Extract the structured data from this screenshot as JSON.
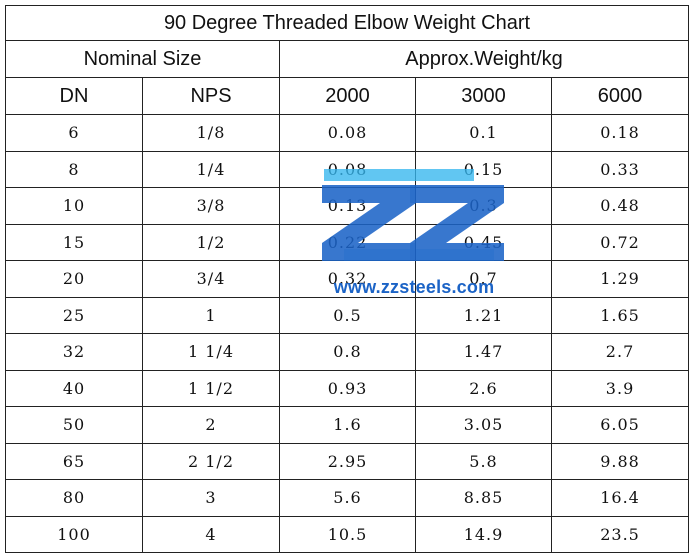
{
  "title": "90 Degree Threaded Elbow Weight Chart",
  "header": {
    "nominal_size": "Nominal Size",
    "approx_weight": "Approx.Weight/kg",
    "dn": "DN",
    "nps": "NPS",
    "c2000": "2000",
    "c3000": "3000",
    "c6000": "6000"
  },
  "rows": [
    {
      "dn": "6",
      "nps": "1/8",
      "w2000": "0.08",
      "w3000": "0.1",
      "w6000": "0.18"
    },
    {
      "dn": "8",
      "nps": "1/4",
      "w2000": "0.08",
      "w3000": "0.15",
      "w6000": "0.33"
    },
    {
      "dn": "10",
      "nps": "3/8",
      "w2000": "0.13",
      "w3000": "0.3",
      "w6000": "0.48"
    },
    {
      "dn": "15",
      "nps": "1/2",
      "w2000": "0.22",
      "w3000": "0.45",
      "w6000": "0.72"
    },
    {
      "dn": "20",
      "nps": "3/4",
      "w2000": "0.32",
      "w3000": "0.7",
      "w6000": "1.29"
    },
    {
      "dn": "25",
      "nps": "1",
      "w2000": "0.5",
      "w3000": "1.21",
      "w6000": "1.65"
    },
    {
      "dn": "32",
      "nps": "1 1/4",
      "w2000": "0.8",
      "w3000": "1.47",
      "w6000": "2.7"
    },
    {
      "dn": "40",
      "nps": "1 1/2",
      "w2000": "0.93",
      "w3000": "2.6",
      "w6000": "3.9"
    },
    {
      "dn": "50",
      "nps": "2",
      "w2000": "1.6",
      "w3000": "3.05",
      "w6000": "6.05"
    },
    {
      "dn": "65",
      "nps": "2 1/2",
      "w2000": "2.95",
      "w3000": "5.8",
      "w6000": "9.88"
    },
    {
      "dn": "80",
      "nps": "3",
      "w2000": "5.6",
      "w3000": "8.85",
      "w6000": "16.4"
    },
    {
      "dn": "100",
      "nps": "4",
      "w2000": "10.5",
      "w3000": "14.9",
      "w6000": "23.5"
    }
  ],
  "watermark": {
    "url": "www.zzsteels.com",
    "logo_color": "#1b63c6",
    "accent_color": "#35b6ee",
    "icon": "zz-logo-icon"
  }
}
